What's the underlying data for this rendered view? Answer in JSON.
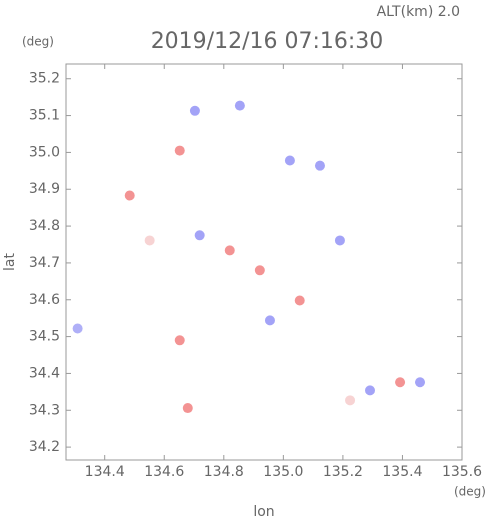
{
  "chart_data": {
    "type": "scatter",
    "title": "2019/12/16 07:16:30",
    "subtitle": "ALT(km) 2.0",
    "x_label": "lon",
    "y_label": "lat",
    "x_unit": "(deg)",
    "y_unit": "(deg)",
    "x": [
      134.309,
      134.484,
      134.679,
      134.652,
      134.703,
      134.854,
      134.652,
      135.022,
      135.123,
      134.719,
      134.82,
      135.19,
      135.055,
      134.955,
      135.291,
      135.392,
      135.459,
      135.224,
      134.551,
      134.921
    ],
    "y": [
      34.522,
      34.883,
      34.306,
      34.49,
      35.113,
      35.127,
      35.005,
      34.978,
      34.964,
      34.775,
      34.734,
      34.761,
      34.598,
      34.544,
      34.354,
      34.376,
      34.376,
      34.327,
      34.761,
      34.68
    ],
    "colors": [
      "#9b9bf5",
      "#f07878",
      "#f07878",
      "#f07878",
      "#8c8cf5",
      "#8c8cf5",
      "#f07878",
      "#8c8cf5",
      "#8c8cf5",
      "#8c8cf5",
      "#f07878",
      "#8c8cf5",
      "#f07878",
      "#8c8cf5",
      "#8c8cf5",
      "#f07878",
      "#8c8cf5",
      "#f5c8c8",
      "#f5c8c8",
      "#f07878"
    ],
    "xlim": [
      134.27,
      135.6
    ],
    "ylim": [
      34.165,
      35.24
    ],
    "xticks": [
      134.4,
      134.6,
      134.8,
      {
        "value": 135,
        "label": "135.0"
      },
      135.2,
      135.4,
      135.6
    ],
    "yticks": [
      34.2,
      34.3,
      34.4,
      34.5,
      34.6,
      34.7,
      34.8,
      34.9,
      {
        "value": 35,
        "label": "35.0"
      },
      35.1,
      35.2
    ]
  }
}
